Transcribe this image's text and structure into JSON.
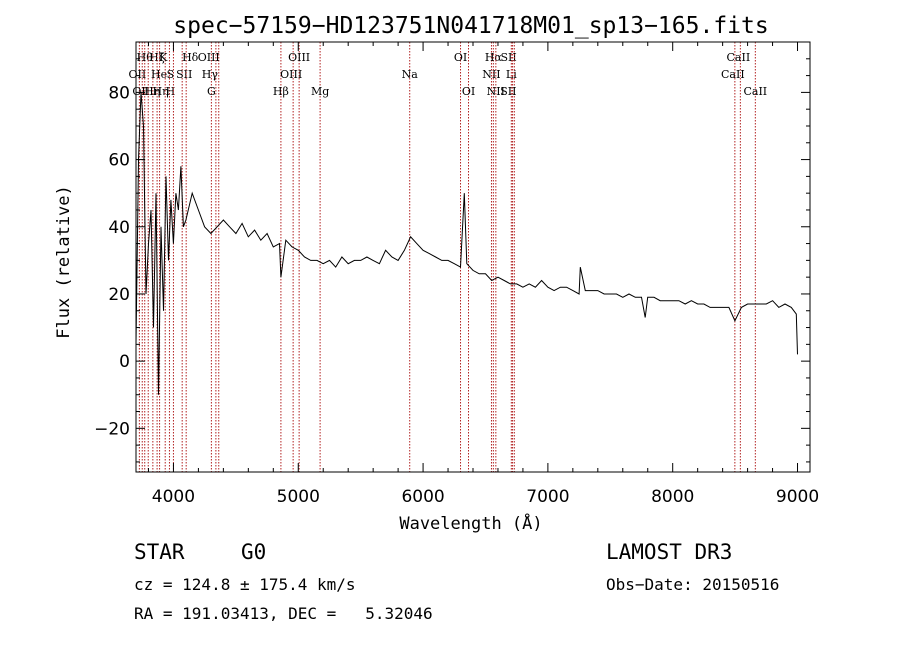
{
  "chart_data": {
    "type": "line",
    "title": "spec−57159−HD123751N041718M01_sp13−165.fits",
    "xlabel": "Wavelength (Å)",
    "ylabel": "Flux (relative)",
    "xlim": [
      3700,
      9100
    ],
    "ylim": [
      -33,
      95
    ],
    "xticks": [
      4000,
      5000,
      6000,
      7000,
      8000,
      9000
    ],
    "yticks": [
      -20,
      0,
      20,
      40,
      60,
      80
    ],
    "ytick_labels": [
      "−20",
      "0",
      "20",
      "40",
      "60",
      "80"
    ],
    "series": [
      {
        "name": "spectrum",
        "x": [
          3700,
          3720,
          3740,
          3760,
          3780,
          3800,
          3820,
          3840,
          3860,
          3880,
          3900,
          3920,
          3940,
          3960,
          3980,
          4000,
          4020,
          4040,
          4060,
          4080,
          4100,
          4150,
          4200,
          4250,
          4300,
          4350,
          4400,
          4450,
          4500,
          4550,
          4600,
          4650,
          4700,
          4750,
          4800,
          4850,
          4861,
          4900,
          4950,
          5000,
          5050,
          5100,
          5150,
          5200,
          5250,
          5300,
          5350,
          5400,
          5450,
          5500,
          5550,
          5600,
          5650,
          5700,
          5750,
          5800,
          5850,
          5900,
          5950,
          6000,
          6050,
          6100,
          6150,
          6200,
          6250,
          6300,
          6330,
          6350,
          6400,
          6450,
          6500,
          6550,
          6600,
          6650,
          6700,
          6750,
          6800,
          6850,
          6900,
          6950,
          7000,
          7050,
          7100,
          7150,
          7200,
          7250,
          7260,
          7300,
          7350,
          7400,
          7450,
          7500,
          7550,
          7600,
          7650,
          7700,
          7750,
          7780,
          7800,
          7850,
          7900,
          7950,
          8000,
          8050,
          8100,
          8150,
          8200,
          8250,
          8300,
          8350,
          8400,
          8450,
          8498,
          8550,
          8600,
          8650,
          8700,
          8750,
          8800,
          8850,
          8900,
          8950,
          8990,
          9000
        ],
        "y": [
          5,
          60,
          80,
          70,
          20,
          35,
          45,
          10,
          50,
          -10,
          40,
          15,
          55,
          30,
          48,
          35,
          50,
          45,
          58,
          40,
          42,
          50,
          45,
          40,
          38,
          40,
          42,
          40,
          38,
          41,
          37,
          39,
          36,
          38,
          34,
          35,
          25,
          36,
          34,
          33,
          31,
          30,
          30,
          29,
          30,
          28,
          31,
          29,
          30,
          30,
          31,
          30,
          29,
          33,
          31,
          30,
          33,
          37,
          35,
          33,
          32,
          31,
          30,
          30,
          29,
          28,
          50,
          29,
          27,
          26,
          26,
          24,
          25,
          24,
          23,
          23,
          22,
          23,
          22,
          24,
          22,
          21,
          22,
          22,
          21,
          20,
          28,
          21,
          21,
          21,
          20,
          20,
          20,
          19,
          20,
          19,
          19,
          13,
          19,
          19,
          18,
          18,
          18,
          18,
          17,
          18,
          17,
          17,
          16,
          16,
          16,
          16,
          12,
          16,
          17,
          17,
          17,
          17,
          18,
          16,
          17,
          16,
          14,
          2
        ]
      }
    ],
    "lines": [
      {
        "x": 3727,
        "label": "OII",
        "row": 2,
        "dx": -2
      },
      {
        "x": 3750,
        "label": "OII",
        "row": 3,
        "dx": -1
      },
      {
        "x": 3770,
        "label": "Hθ",
        "row": 1,
        "dx": 0
      },
      {
        "x": 3798,
        "label": "Hη",
        "row": 3,
        "dx": 4
      },
      {
        "x": 3835,
        "label": "Hζ",
        "row": 1,
        "dx": 4
      },
      {
        "x": 3869,
        "label": "He",
        "row": 2,
        "dx": 2
      },
      {
        "x": 3889,
        "label": "Hη",
        "row": 3,
        "dx": 1
      },
      {
        "x": 3934,
        "label": "K",
        "row": 1,
        "dx": -2
      },
      {
        "x": 3968,
        "label": "H",
        "row": 3,
        "dx": 1
      },
      {
        "x": 4000,
        "label": "S",
        "row": 2,
        "dx": -3
      },
      {
        "x": 4070,
        "label": "SII",
        "row": 2,
        "dx": 2
      },
      {
        "x": 4102,
        "label": "Hδ",
        "row": 1,
        "dx": 4
      },
      {
        "x": 4304,
        "label": "G",
        "row": 3,
        "dx": 0
      },
      {
        "x": 4340,
        "label": "Hγ",
        "row": 2,
        "dx": -6
      },
      {
        "x": 4363,
        "label": "OIII",
        "row": 1,
        "dx": -10
      },
      {
        "x": 4861,
        "label": "Hβ",
        "row": 3,
        "dx": 0
      },
      {
        "x": 4959,
        "label": "OIII",
        "row": 2,
        "dx": -2
      },
      {
        "x": 5007,
        "label": "OIII",
        "row": 1,
        "dx": 0
      },
      {
        "x": 5175,
        "label": "Mg",
        "row": 3,
        "dx": 0
      },
      {
        "x": 5893,
        "label": "Na",
        "row": 2,
        "dx": 0
      },
      {
        "x": 6300,
        "label": "OI",
        "row": 1,
        "dx": 0
      },
      {
        "x": 6364,
        "label": "OI",
        "row": 3,
        "dx": 0
      },
      {
        "x": 6548,
        "label": "NII",
        "row": 2,
        "dx": 0
      },
      {
        "x": 6563,
        "label": "Hα",
        "row": 1,
        "dx": 0
      },
      {
        "x": 6583,
        "label": "NII",
        "row": 3,
        "dx": 0
      },
      {
        "x": 6707,
        "label": "Li",
        "row": 2,
        "dx": 0
      },
      {
        "x": 6717,
        "label": "SII",
        "row": 1,
        "dx": -4
      },
      {
        "x": 6731,
        "label": "SII",
        "row": 3,
        "dx": -6
      },
      {
        "x": 8498,
        "label": "CaII",
        "row": 2,
        "dx": -2
      },
      {
        "x": 8542,
        "label": "CaII",
        "row": 1,
        "dx": -2
      },
      {
        "x": 8662,
        "label": "CaII",
        "row": 3,
        "dx": 0
      }
    ]
  },
  "info": {
    "object_type": "STAR",
    "subclass": "G0",
    "survey": "LAMOST DR3",
    "cz": "cz = 124.8 ± 175.4 km/s",
    "obs_date": "Obs−Date: 20150516",
    "radec": "RA = 191.03413, DEC =   5.32046"
  }
}
